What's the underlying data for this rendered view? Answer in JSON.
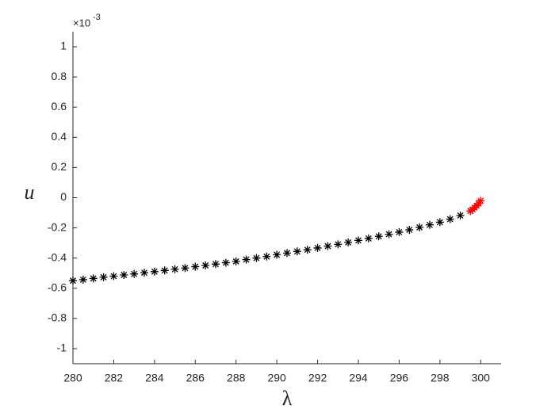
{
  "chart_data": {
    "type": "scatter",
    "x_label": "λ",
    "y_label": "u",
    "y_multiplier": {
      "base": "×10",
      "exponent": "-3"
    },
    "xlim": [
      280,
      301
    ],
    "ylim": [
      -1.1,
      1.1
    ],
    "xticks": [
      280,
      282,
      284,
      286,
      288,
      290,
      292,
      294,
      296,
      298,
      300
    ],
    "yticks": [
      -1,
      -0.8,
      -0.6,
      -0.4,
      -0.2,
      0,
      0.2,
      0.4,
      0.6,
      0.8,
      1
    ],
    "marker": "asterisk",
    "series": [
      {
        "color": "#000000",
        "x": [
          280,
          280.5,
          281,
          281.5,
          282,
          282.5,
          283,
          283.5,
          284,
          284.5,
          285,
          285.5,
          286,
          286.5,
          287,
          287.5,
          288,
          288.5,
          289,
          289.5,
          290,
          290.5,
          291,
          291.5,
          292,
          292.5,
          293,
          293.5,
          294,
          294.5,
          295,
          295.5,
          296,
          296.5,
          297,
          297.5,
          298,
          298.5,
          299,
          299.5
        ],
        "values": [
          -0.55,
          -0.543,
          -0.535,
          -0.527,
          -0.52,
          -0.512,
          -0.505,
          -0.497,
          -0.49,
          -0.482,
          -0.474,
          -0.466,
          -0.457,
          -0.449,
          -0.44,
          -0.431,
          -0.422,
          -0.41,
          -0.4,
          -0.39,
          -0.378,
          -0.367,
          -0.356,
          -0.345,
          -0.333,
          -0.321,
          -0.309,
          -0.296,
          -0.283,
          -0.27,
          -0.256,
          -0.242,
          -0.228,
          -0.213,
          -0.197,
          -0.18,
          -0.162,
          -0.142,
          -0.118,
          -0.088
        ]
      },
      {
        "color": "#ff0000",
        "x": [
          299.5,
          299.6,
          299.7,
          299.8,
          299.9,
          300
        ],
        "values": [
          -0.088,
          -0.078,
          -0.066,
          -0.053,
          -0.038,
          -0.02
        ]
      }
    ]
  }
}
